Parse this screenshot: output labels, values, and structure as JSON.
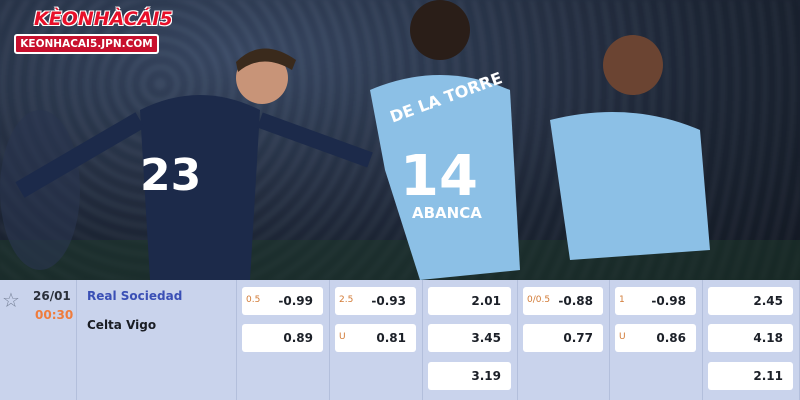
{
  "logo": {
    "brand": "KÈONHÀCÁI5",
    "url": "KEONHACAI5.JPN.COM"
  },
  "photo": {
    "jersey_text_1": "DE LA TORRE",
    "jersey_num_1": "14",
    "sponsor": "ABANCA",
    "jersey_num_2": "23"
  },
  "match": {
    "date": "26/01",
    "time": "00:30",
    "home": "Real Sociedad",
    "away": "Celta Vigo",
    "star_icon": "star-outline-icon"
  },
  "odds": [
    [
      {
        "label": "0.5",
        "value": "-0.99"
      },
      {
        "label": "",
        "value": "0.89"
      }
    ],
    [
      {
        "label": "2.5",
        "value": "-0.93"
      },
      {
        "label": "U",
        "value": "0.81"
      }
    ],
    [
      {
        "label": "",
        "value": "2.01"
      },
      {
        "label": "",
        "value": "3.45"
      },
      {
        "label": "",
        "value": "3.19"
      }
    ],
    [
      {
        "label": "0/0.5",
        "value": "-0.88"
      },
      {
        "label": "",
        "value": "0.77"
      }
    ],
    [
      {
        "label": "1",
        "value": "-0.98"
      },
      {
        "label": "U",
        "value": "0.86"
      }
    ],
    [
      {
        "label": "",
        "value": "2.45"
      },
      {
        "label": "",
        "value": "4.18"
      },
      {
        "label": "",
        "value": "2.11"
      }
    ]
  ]
}
